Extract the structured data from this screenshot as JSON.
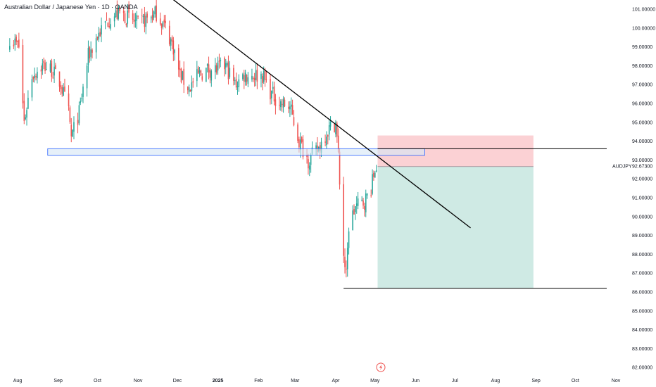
{
  "header": {
    "title": "Australian Dollar / Japanese Yen · 1D · OANDA"
  },
  "price_tag": {
    "symbol": "AUDJPY",
    "price": "92.67300"
  },
  "colors": {
    "bull": "#26a69a",
    "bear": "#ef5350",
    "trendline": "#000000",
    "zone_fill": "#d6e6f5",
    "zone_border": "#2962ff",
    "stop_fill": "#fbd1d4",
    "target_fill": "#cfeae4"
  },
  "chart_data": {
    "type": "candlestick",
    "title": "Australian Dollar / Japanese Yen · 1D · OANDA",
    "symbol": "AUDJPY",
    "last_price": 92.673,
    "y_axis": {
      "range": [
        81.8,
        101.4
      ],
      "ticks": [
        "101.00000",
        "100.00000",
        "99.00000",
        "98.00000",
        "97.00000",
        "96.00000",
        "95.00000",
        "94.00000",
        "93.00000",
        "92.00000",
        "91.00000",
        "90.00000",
        "89.00000",
        "88.00000",
        "87.00000",
        "86.00000",
        "85.00000",
        "84.00000",
        "83.00000",
        "82.00000"
      ]
    },
    "x_axis": {
      "ticks": [
        "Aug",
        "Sep",
        "Oct",
        "Nov",
        "Dec",
        "2025",
        "Feb",
        "Mar",
        "Apr",
        "May",
        "Jun",
        "Jul",
        "Aug",
        "Sep",
        "Oct",
        "Nov"
      ],
      "bold_ticks": [
        "2025"
      ]
    },
    "close_path": [
      [
        "2024-07-26",
        99.5
      ],
      [
        "2024-08-02",
        99.0
      ],
      [
        "2024-08-06",
        95.0
      ],
      [
        "2024-08-12",
        97.5
      ],
      [
        "2024-08-20",
        98.0
      ],
      [
        "2024-08-27",
        97.8
      ],
      [
        "2024-09-03",
        97.0
      ],
      [
        "2024-09-09",
        95.5
      ],
      [
        "2024-09-11",
        94.2
      ],
      [
        "2024-09-17",
        95.5
      ],
      [
        "2024-09-24",
        98.5
      ],
      [
        "2024-10-01",
        99.6
      ],
      [
        "2024-10-10",
        100.5
      ],
      [
        "2024-10-18",
        100.8
      ],
      [
        "2024-10-25",
        100.5
      ],
      [
        "2024-11-01",
        100.2
      ],
      [
        "2024-11-08",
        100.5
      ],
      [
        "2024-11-15",
        100.8
      ],
      [
        "2024-11-22",
        100.0
      ],
      [
        "2024-11-28",
        99.0
      ],
      [
        "2024-12-03",
        97.5
      ],
      [
        "2024-12-10",
        96.8
      ],
      [
        "2024-12-17",
        97.5
      ],
      [
        "2024-12-24",
        97.8
      ],
      [
        "2024-12-31",
        97.8
      ],
      [
        "2025-01-07",
        98.0
      ],
      [
        "2025-01-14",
        97.0
      ],
      [
        "2025-01-21",
        97.5
      ],
      [
        "2025-01-28",
        97.5
      ],
      [
        "2025-02-04",
        97.5
      ],
      [
        "2025-02-11",
        96.5
      ],
      [
        "2025-02-18",
        96.0
      ],
      [
        "2025-02-25",
        95.8
      ],
      [
        "2025-03-04",
        94.0
      ],
      [
        "2025-03-11",
        93.0
      ],
      [
        "2025-03-18",
        93.5
      ],
      [
        "2025-03-25",
        94.5
      ],
      [
        "2025-04-01",
        95.0
      ],
      [
        "2025-04-03",
        93.2
      ],
      [
        "2025-04-07",
        88.0
      ],
      [
        "2025-04-09",
        86.8
      ],
      [
        "2025-04-11",
        89.5
      ],
      [
        "2025-04-16",
        90.5
      ],
      [
        "2025-04-23",
        90.8
      ],
      [
        "2025-04-28",
        91.5
      ],
      [
        "2025-05-01",
        92.5
      ],
      [
        "2025-05-05",
        93.3
      ],
      [
        "2025-05-09",
        92.7
      ]
    ],
    "annotations": {
      "resistance_zone": {
        "x_start": "2024-08-24",
        "x_end": "2025-06-08",
        "y_low": 93.25,
        "y_high": 93.6
      },
      "horizontal_line_upper": {
        "x_start": "2025-05-03",
        "y": 93.6
      },
      "horizontal_line_lower": {
        "x_start": "2025-04-07",
        "y": 86.2
      },
      "trendline": {
        "from": [
          "2024-11-28",
          101.5
        ],
        "to": [
          "2025-07-13",
          89.4
        ]
      },
      "short_position": {
        "x_start": "2025-05-03",
        "x_end": "2025-08-30",
        "entry": 92.65,
        "stop": 94.3,
        "target": 86.2
      }
    }
  }
}
